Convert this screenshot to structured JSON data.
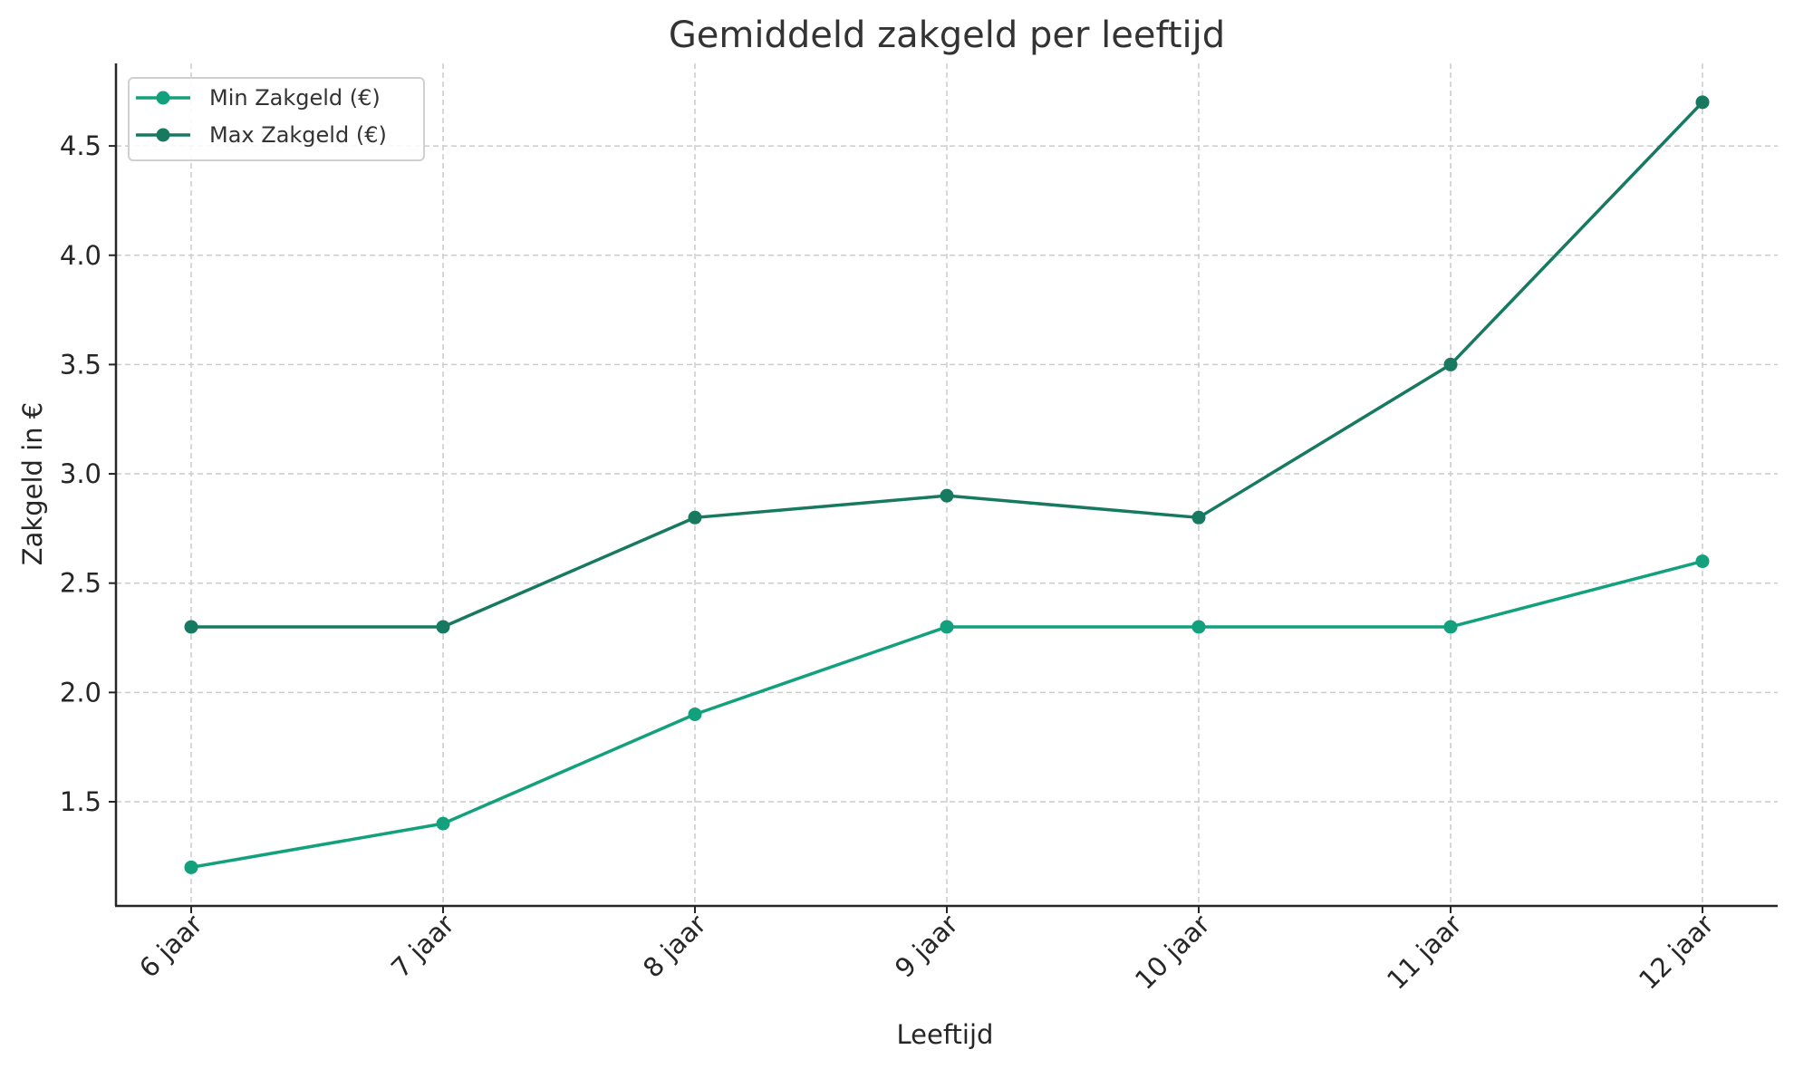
{
  "chart_data": {
    "type": "line",
    "title": "Gemiddeld zakgeld per leeftijd",
    "xlabel": "Leeftijd",
    "ylabel": "Zakgeld in €",
    "categories": [
      "6 jaar",
      "7 jaar",
      "8 jaar",
      "9 jaar",
      "10 jaar",
      "11 jaar",
      "12 jaar"
    ],
    "series": [
      {
        "name": "Min Zakgeld (€)",
        "color": "#13a07d",
        "values": [
          1.2,
          1.4,
          1.9,
          2.3,
          2.3,
          2.3,
          2.6
        ]
      },
      {
        "name": "Max Zakgeld (€)",
        "color": "#177a60",
        "values": [
          2.3,
          2.3,
          2.8,
          2.9,
          2.8,
          3.5,
          4.7
        ]
      }
    ],
    "yticks": [
      "1.5",
      "2.0",
      "2.5",
      "3.0",
      "3.5",
      "4.0",
      "4.5"
    ],
    "ylim": [
      1.02,
      4.87
    ],
    "grid": true,
    "legend_position": "upper left"
  }
}
